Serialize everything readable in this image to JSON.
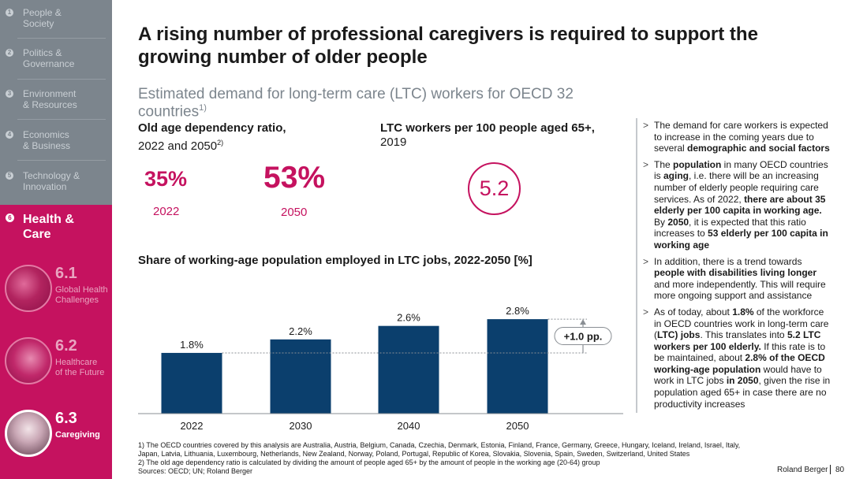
{
  "sidebar": {
    "items": [
      {
        "num": "1",
        "label": "People &\nSociety"
      },
      {
        "num": "2",
        "label": "Politics &\nGovernance"
      },
      {
        "num": "3",
        "label": "Environment\n& Resources"
      },
      {
        "num": "4",
        "label": "Economics\n& Business"
      },
      {
        "num": "5",
        "label": "Technology &\nInnovation"
      }
    ],
    "active": {
      "num": "6",
      "label": "Health &\nCare"
    },
    "subitems": [
      {
        "num": "6.1",
        "label": "Global Health\nChallenges"
      },
      {
        "num": "6.2",
        "label": "Healthcare\nof the Future"
      },
      {
        "num": "6.3",
        "label": "Caregiving"
      }
    ]
  },
  "title": "A rising number of professional caregivers is required to support the growing number of older people",
  "subtitle": "Estimated demand for long-term care (LTC) workers for OECD 32 countries",
  "subtitle_sup": "1)",
  "kpi_left": {
    "label_bold": "Old age dependency ratio,",
    "label_rest": "2022 and 2050",
    "label_sup": "2)",
    "values": [
      {
        "value": "35%",
        "year": "2022"
      },
      {
        "value": "53%",
        "year": "2050"
      }
    ]
  },
  "kpi_right": {
    "label_bold": "LTC workers per 100 people aged 65+,",
    "label_rest": "2019",
    "value": "5.2"
  },
  "chart_title": "Share of working-age population employed in LTC jobs, 2022-2050 [%]",
  "chart_data": {
    "type": "bar",
    "categories": [
      "2022",
      "2030",
      "2040",
      "2050"
    ],
    "values": [
      1.8,
      2.2,
      2.6,
      2.8
    ],
    "value_labels": [
      "1.8%",
      "2.2%",
      "2.6%",
      "2.8%"
    ],
    "ylim": [
      0,
      3.2
    ],
    "color": "#0b3f6d",
    "annotation": "+1.0 pp.",
    "title": "Share of working-age population employed in LTC jobs, 2022-2050 [%]",
    "xlabel": "",
    "ylabel": ""
  },
  "bullets": [
    [
      {
        "t": "The demand for care workers is expected to increase in the coming years due to several "
      },
      {
        "t": "demographic and social factors",
        "b": true
      }
    ],
    [
      {
        "t": "The "
      },
      {
        "t": "population",
        "b": true
      },
      {
        "t": " in many OECD countries is "
      },
      {
        "t": "aging",
        "b": true
      },
      {
        "t": ", i.e. there will be an increasing number of elderly people requiring care services. As of 2022, "
      },
      {
        "t": "there are about 35 elderly per 100 capita in working age.",
        "b": true
      },
      {
        "t": " By "
      },
      {
        "t": "2050",
        "b": true
      },
      {
        "t": ", it is expected that this ratio increases to "
      },
      {
        "t": "53 elderly per 100 capita in working age",
        "b": true
      }
    ],
    [
      {
        "t": "In addition, there is a trend towards "
      },
      {
        "t": "people with disabilities living longer",
        "b": true
      },
      {
        "t": " and more independently. This will require more ongoing support and assistance"
      }
    ],
    [
      {
        "t": "As of today, about "
      },
      {
        "t": "1.8%",
        "b": true
      },
      {
        "t": " of the workforce in OECD countries work in long-term care ("
      },
      {
        "t": "LTC) jobs",
        "b": true
      },
      {
        "t": ". This translates into "
      },
      {
        "t": "5.2 LTC workers per 100 elderly.",
        "b": true
      },
      {
        "t": " If this rate is to be maintained, about "
      },
      {
        "t": "2.8% of the OECD working-age population",
        "b": true
      },
      {
        "t": " would have to work in LTC jobs "
      },
      {
        "t": "in 2050",
        "b": true
      },
      {
        "t": ", given the rise in population aged 65+ in case there are no productivity increases"
      }
    ]
  ],
  "footnotes": [
    "1) The OECD countries covered by this analysis are Australia, Austria, Belgium, Canada, Czechia, Denmark, Estonia, Finland, France, Germany, Greece, Hungary, Iceland, Ireland, Israel, Italy,",
    "Japan, Latvia, Lithuania, Luxembourg, Netherlands, New Zealand, Norway, Poland, Portugal, Republic of Korea, Slovakia, Slovenia, Spain, Sweden, Switzerland, United States",
    "2) The old age dependency ratio is calculated by dividing the amount of people aged 65+ by the amount of people in the working age (20-64) group",
    "Sources: OECD; UN; Roland Berger"
  ],
  "brand": "Roland Berger",
  "page_number": "80",
  "colors": {
    "accent": "#c5125f",
    "bar": "#0b3f6d",
    "sidebar": "#7c858d"
  }
}
